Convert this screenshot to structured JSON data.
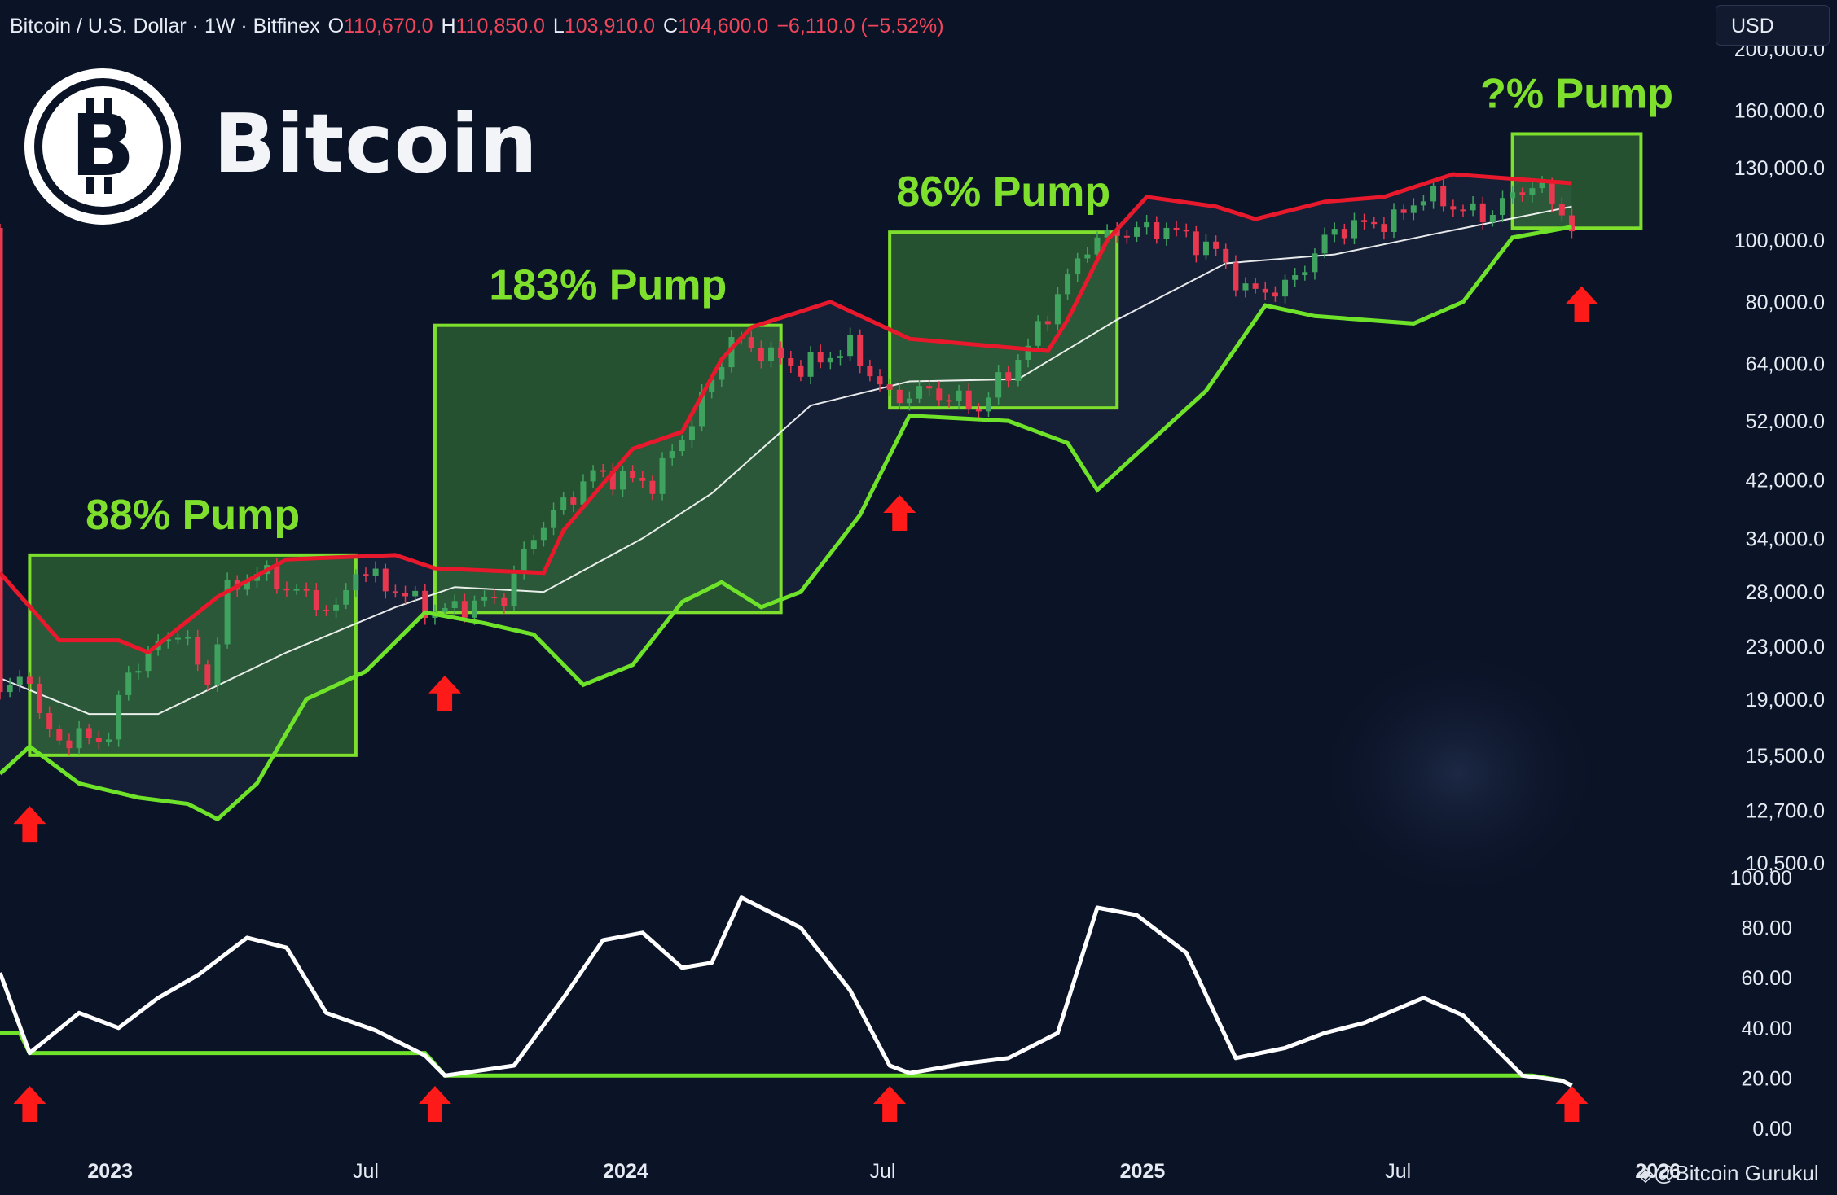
{
  "header": {
    "symbol": "Bitcoin / U.S. Dollar · 1W · Bitfinex",
    "o_label": "O",
    "o_value": "110,670.0",
    "h_label": "H",
    "h_value": "110,850.0",
    "l_label": "L",
    "l_value": "103,910.0",
    "c_label": "C",
    "c_value": "104,600.0",
    "change": "−6,110.0 (−5.52%)"
  },
  "currency_button": "USD",
  "brand": {
    "name": "Bitcoin",
    "logo_letter": "B",
    "logo": "bitcoin-logo-icon"
  },
  "watermark": {
    "icon": "binance-square-icon",
    "text": "@Bitcoin Gurukul"
  },
  "colors": {
    "background": "#0b1327",
    "up_candle": "#3fa35f",
    "down_candle": "#e8384f",
    "upper_band": "#e8192c",
    "lower_band": "#6fe22a",
    "basis": "#ffffff",
    "pump_box": "#7ee02c",
    "arrow": "#ff1a1a",
    "oscillator": "#ffffff"
  },
  "chart_data": [
    {
      "type": "candlestick",
      "scale": "log",
      "y_ticks": [
        "200,000.0",
        "160,000.0",
        "130,000.0",
        "100,000.0",
        "80,000.0",
        "64,000.0",
        "52,000.0",
        "42,000.0",
        "34,000.0",
        "28,000.0",
        "23,000.0",
        "19,000.0",
        "15,500.0",
        "12,700.0",
        "10,500.0"
      ],
      "y_range": [
        10500,
        200000
      ],
      "x_ticks": [
        "2023",
        "Jul",
        "2024",
        "Jul",
        "2025",
        "Jul",
        "2026"
      ],
      "x_range": [
        "2022-10-15",
        "2025-12-29"
      ],
      "anchors": [
        {
          "d": "2022-10-15",
          "v": 19200
        },
        {
          "d": "2022-11-05",
          "v": 21000
        },
        {
          "d": "2022-11-12",
          "v": 17500
        },
        {
          "d": "2022-11-26",
          "v": 16400
        },
        {
          "d": "2022-12-31",
          "v": 16600
        },
        {
          "d": "2023-01-14",
          "v": 21000
        },
        {
          "d": "2023-02-18",
          "v": 24500
        },
        {
          "d": "2023-03-11",
          "v": 20200
        },
        {
          "d": "2023-03-25",
          "v": 28000
        },
        {
          "d": "2023-04-15",
          "v": 30200
        },
        {
          "d": "2023-06-10",
          "v": 26000
        },
        {
          "d": "2023-06-24",
          "v": 30500
        },
        {
          "d": "2023-08-19",
          "v": 26000
        },
        {
          "d": "2023-10-07",
          "v": 27500
        },
        {
          "d": "2023-10-28",
          "v": 34500
        },
        {
          "d": "2023-12-09",
          "v": 43000
        },
        {
          "d": "2024-01-20",
          "v": 41500
        },
        {
          "d": "2024-02-17",
          "v": 52000
        },
        {
          "d": "2024-03-16",
          "v": 70000
        },
        {
          "d": "2024-05-04",
          "v": 63000
        },
        {
          "d": "2024-06-08",
          "v": 68000
        },
        {
          "d": "2024-07-06",
          "v": 56500
        },
        {
          "d": "2024-08-03",
          "v": 58000
        },
        {
          "d": "2024-09-07",
          "v": 54500
        },
        {
          "d": "2024-10-12",
          "v": 68000
        },
        {
          "d": "2024-11-23",
          "v": 98500
        },
        {
          "d": "2024-12-14",
          "v": 103000
        },
        {
          "d": "2025-01-18",
          "v": 104500
        },
        {
          "d": "2025-02-22",
          "v": 96000
        },
        {
          "d": "2025-03-15",
          "v": 83000
        },
        {
          "d": "2025-04-12",
          "v": 84000
        },
        {
          "d": "2025-05-17",
          "v": 104000
        },
        {
          "d": "2025-06-28",
          "v": 107500
        },
        {
          "d": "2025-07-19",
          "v": 118000
        },
        {
          "d": "2025-08-30",
          "v": 109000
        },
        {
          "d": "2025-10-04",
          "v": 123000
        },
        {
          "d": "2025-10-25",
          "v": 111000
        },
        {
          "d": "2025-11-01",
          "v": 104600
        }
      ],
      "bands": {
        "upper": [
          {
            "d": "2022-10-15",
            "v": 30000
          },
          {
            "d": "2022-11-26",
            "v": 23500
          },
          {
            "d": "2023-01-07",
            "v": 23500
          },
          {
            "d": "2023-01-28",
            "v": 22500
          },
          {
            "d": "2023-03-18",
            "v": 27500
          },
          {
            "d": "2023-05-06",
            "v": 31500
          },
          {
            "d": "2023-07-22",
            "v": 32000
          },
          {
            "d": "2023-08-19",
            "v": 30500
          },
          {
            "d": "2023-11-04",
            "v": 30000
          },
          {
            "d": "2023-11-18",
            "v": 35000
          },
          {
            "d": "2024-01-06",
            "v": 47000
          },
          {
            "d": "2024-02-10",
            "v": 50000
          },
          {
            "d": "2024-03-09",
            "v": 65000
          },
          {
            "d": "2024-03-30",
            "v": 73000
          },
          {
            "d": "2024-05-25",
            "v": 80000
          },
          {
            "d": "2024-07-20",
            "v": 70000
          },
          {
            "d": "2024-10-26",
            "v": 67000
          },
          {
            "d": "2024-11-09",
            "v": 75000
          },
          {
            "d": "2024-12-07",
            "v": 100000
          },
          {
            "d": "2025-01-04",
            "v": 117000
          },
          {
            "d": "2025-02-22",
            "v": 113000
          },
          {
            "d": "2025-03-22",
            "v": 108000
          },
          {
            "d": "2025-05-10",
            "v": 115000
          },
          {
            "d": "2025-06-21",
            "v": 117000
          },
          {
            "d": "2025-08-09",
            "v": 127000
          },
          {
            "d": "2025-11-01",
            "v": 123000
          }
        ],
        "lower": [
          {
            "d": "2022-10-15",
            "v": 14500
          },
          {
            "d": "2022-11-05",
            "v": 16000
          },
          {
            "d": "2022-12-10",
            "v": 14000
          },
          {
            "d": "2023-01-21",
            "v": 13300
          },
          {
            "d": "2023-02-25",
            "v": 13000
          },
          {
            "d": "2023-03-18",
            "v": 12300
          },
          {
            "d": "2023-04-15",
            "v": 14000
          },
          {
            "d": "2023-05-20",
            "v": 19000
          },
          {
            "d": "2023-07-01",
            "v": 21000
          },
          {
            "d": "2023-08-12",
            "v": 26000
          },
          {
            "d": "2023-09-23",
            "v": 25000
          },
          {
            "d": "2023-10-28",
            "v": 24000
          },
          {
            "d": "2023-12-02",
            "v": 20000
          },
          {
            "d": "2024-01-06",
            "v": 21500
          },
          {
            "d": "2024-02-10",
            "v": 27000
          },
          {
            "d": "2024-03-09",
            "v": 29000
          },
          {
            "d": "2024-04-06",
            "v": 26500
          },
          {
            "d": "2024-05-04",
            "v": 28000
          },
          {
            "d": "2024-06-15",
            "v": 37000
          },
          {
            "d": "2024-07-20",
            "v": 53000
          },
          {
            "d": "2024-09-28",
            "v": 52000
          },
          {
            "d": "2024-11-09",
            "v": 48000
          },
          {
            "d": "2024-11-30",
            "v": 40500
          },
          {
            "d": "2025-02-15",
            "v": 58000
          },
          {
            "d": "2025-03-29",
            "v": 79000
          },
          {
            "d": "2025-05-03",
            "v": 76000
          },
          {
            "d": "2025-07-12",
            "v": 74000
          },
          {
            "d": "2025-08-16",
            "v": 80000
          },
          {
            "d": "2025-09-20",
            "v": 101000
          },
          {
            "d": "2025-11-01",
            "v": 105000
          }
        ],
        "basis": [
          {
            "d": "2022-10-15",
            "v": 20500
          },
          {
            "d": "2022-12-17",
            "v": 18000
          },
          {
            "d": "2023-02-04",
            "v": 18000
          },
          {
            "d": "2023-05-06",
            "v": 22500
          },
          {
            "d": "2023-07-22",
            "v": 26500
          },
          {
            "d": "2023-09-02",
            "v": 28500
          },
          {
            "d": "2023-11-04",
            "v": 28000
          },
          {
            "d": "2024-01-13",
            "v": 34000
          },
          {
            "d": "2024-03-02",
            "v": 40000
          },
          {
            "d": "2024-05-11",
            "v": 55000
          },
          {
            "d": "2024-07-20",
            "v": 60000
          },
          {
            "d": "2024-10-05",
            "v": 60500
          },
          {
            "d": "2024-12-14",
            "v": 75000
          },
          {
            "d": "2025-03-01",
            "v": 92000
          },
          {
            "d": "2025-05-17",
            "v": 95000
          },
          {
            "d": "2025-08-02",
            "v": 103000
          },
          {
            "d": "2025-11-01",
            "v": 113000
          }
        ]
      },
      "pump_boxes": [
        {
          "label": "88% Pump",
          "from": "2022-11-05",
          "to": "2023-06-24",
          "low": 15500,
          "high": 32000
        },
        {
          "label": "183% Pump",
          "from": "2023-08-19",
          "to": "2024-04-20",
          "low": 26000,
          "high": 73500
        },
        {
          "label": "86% Pump",
          "from": "2024-07-06",
          "to": "2024-12-14",
          "low": 54500,
          "high": 103000
        },
        {
          "label": "?% Pump",
          "from": "2025-09-20",
          "to": "2025-12-20",
          "low": 104500,
          "high": 147000
        }
      ],
      "signal_arrows": [
        "2022-11-05",
        "2023-08-26",
        "2024-07-13",
        "2025-11-08"
      ]
    },
    {
      "type": "line",
      "y_ticks": [
        "100.00",
        "80.00",
        "60.00",
        "40.00",
        "20.00",
        "0.00"
      ],
      "y_range": [
        0,
        100
      ],
      "series": [
        {
          "values": [
            {
              "d": "2022-10-15",
              "v": 62
            },
            {
              "d": "2022-11-05",
              "v": 30
            },
            {
              "d": "2022-12-10",
              "v": 46
            },
            {
              "d": "2023-01-07",
              "v": 40
            },
            {
              "d": "2023-02-04",
              "v": 52
            },
            {
              "d": "2023-03-04",
              "v": 61
            },
            {
              "d": "2023-04-08",
              "v": 76
            },
            {
              "d": "2023-05-06",
              "v": 72
            },
            {
              "d": "2023-06-03",
              "v": 46
            },
            {
              "d": "2023-07-08",
              "v": 39
            },
            {
              "d": "2023-08-12",
              "v": 29
            },
            {
              "d": "2023-08-26",
              "v": 21
            },
            {
              "d": "2023-10-14",
              "v": 25
            },
            {
              "d": "2023-11-18",
              "v": 52
            },
            {
              "d": "2023-12-16",
              "v": 75
            },
            {
              "d": "2024-01-13",
              "v": 78
            },
            {
              "d": "2024-02-10",
              "v": 64
            },
            {
              "d": "2024-03-02",
              "v": 66
            },
            {
              "d": "2024-03-23",
              "v": 92
            },
            {
              "d": "2024-05-04",
              "v": 80
            },
            {
              "d": "2024-06-08",
              "v": 55
            },
            {
              "d": "2024-07-06",
              "v": 25
            },
            {
              "d": "2024-07-20",
              "v": 22
            },
            {
              "d": "2024-08-31",
              "v": 26
            },
            {
              "d": "2024-09-28",
              "v": 28
            },
            {
              "d": "2024-11-02",
              "v": 38
            },
            {
              "d": "2024-11-30",
              "v": 88
            },
            {
              "d": "2024-12-28",
              "v": 85
            },
            {
              "d": "2025-02-01",
              "v": 70
            },
            {
              "d": "2025-03-08",
              "v": 28
            },
            {
              "d": "2025-04-12",
              "v": 32
            },
            {
              "d": "2025-05-10",
              "v": 38
            },
            {
              "d": "2025-06-07",
              "v": 42
            },
            {
              "d": "2025-07-19",
              "v": 52
            },
            {
              "d": "2025-08-16",
              "v": 45
            },
            {
              "d": "2025-09-27",
              "v": 21
            },
            {
              "d": "2025-10-25",
              "v": 19
            },
            {
              "d": "2025-11-01",
              "v": 17
            }
          ]
        },
        {
          "values": [
            {
              "d": "2022-10-15",
              "v": 38
            },
            {
              "d": "2022-10-29",
              "v": 38
            },
            {
              "d": "2022-11-05",
              "v": 30
            },
            {
              "d": "2023-08-12",
              "v": 30
            },
            {
              "d": "2023-08-26",
              "v": 21
            },
            {
              "d": "2025-10-04",
              "v": 21
            },
            {
              "d": "2025-10-25",
              "v": 19
            },
            {
              "d": "2025-11-01",
              "v": 17
            }
          ]
        }
      ],
      "signal_arrows": [
        "2022-11-05",
        "2023-08-19",
        "2024-07-06",
        "2025-11-01"
      ]
    }
  ]
}
